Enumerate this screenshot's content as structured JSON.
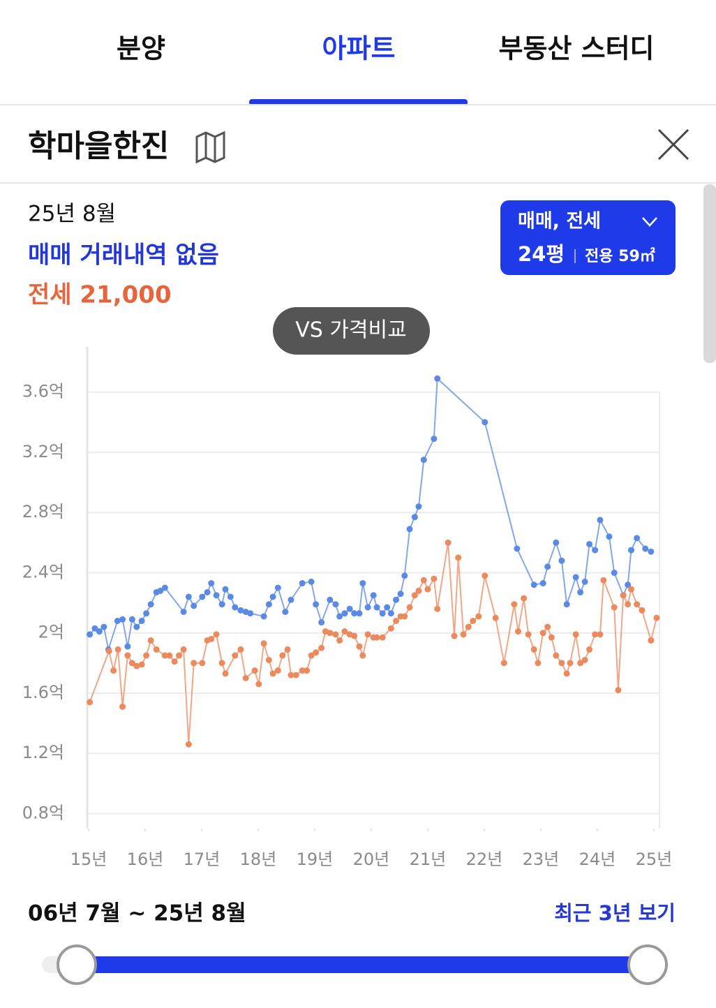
{
  "tabs": [
    "분양",
    "아파트",
    "부동산 스터디"
  ],
  "active_tab": 1,
  "header": {
    "title": "학마을한진"
  },
  "summary": {
    "date": "25년 8월",
    "sale": "매매 거래내역 없음",
    "jeonse": "전세 21,000"
  },
  "filter": {
    "type": "매매, 전세",
    "size": "24평",
    "area": "전용 59㎡"
  },
  "compare_button": "VS 가격비교",
  "chart_data": {
    "type": "line",
    "xlim": [
      15,
      25.1
    ],
    "ylim": [
      0.7,
      3.9
    ],
    "xticks": [
      {
        "value": 15,
        "label": "15년"
      },
      {
        "value": 16,
        "label": "16년"
      },
      {
        "value": 17,
        "label": "17년"
      },
      {
        "value": 18,
        "label": "18년"
      },
      {
        "value": 19,
        "label": "19년"
      },
      {
        "value": 20,
        "label": "20년"
      },
      {
        "value": 21,
        "label": "21년"
      },
      {
        "value": 22,
        "label": "22년"
      },
      {
        "value": 23,
        "label": "23년"
      },
      {
        "value": 24,
        "label": "24년"
      },
      {
        "value": 25,
        "label": "25년"
      }
    ],
    "yticks": [
      {
        "value": 0.8,
        "label": "0.8억"
      },
      {
        "value": 1.2,
        "label": "1.2억"
      },
      {
        "value": 1.6,
        "label": "1.6억"
      },
      {
        "value": 2,
        "label": "2억"
      },
      {
        "value": 2.4,
        "label": "2.4억"
      },
      {
        "value": 2.8,
        "label": "2.8억"
      },
      {
        "value": 3.2,
        "label": "3.2억"
      },
      {
        "value": 3.6,
        "label": "3.6억"
      }
    ],
    "grid": true,
    "series": [
      {
        "color": "#5a8ae6",
        "x": [
          15.02,
          15.11,
          15.19,
          15.27,
          15.35,
          15.51,
          15.6,
          15.69,
          15.77,
          15.85,
          15.94,
          16.02,
          16.1,
          16.2,
          16.27,
          16.35,
          16.68,
          16.77,
          16.86,
          17.01,
          17.1,
          17.17,
          17.26,
          17.36,
          17.42,
          17.51,
          17.59,
          17.69,
          17.78,
          17.86,
          18.1,
          18.19,
          18.26,
          18.35,
          18.48,
          18.58,
          18.78,
          18.94,
          19.02,
          19.12,
          19.27,
          19.37,
          19.44,
          19.53,
          19.62,
          19.7,
          19.79,
          19.85,
          19.94,
          20.04,
          20.1,
          20.2,
          20.28,
          20.35,
          20.44,
          20.52,
          20.59,
          20.68,
          20.77,
          20.84,
          20.93,
          21.11,
          21.17,
          22.01,
          22.58,
          22.88,
          23.04,
          23.12,
          23.27,
          23.37,
          23.46,
          23.62,
          23.7,
          23.78,
          23.86,
          23.96,
          24.05,
          24.21,
          24.3,
          24.46,
          24.54,
          24.6,
          24.7,
          24.85,
          24.95
        ],
        "values": [
          1.99,
          2.03,
          2.01,
          2.04,
          1.89,
          2.08,
          2.09,
          1.91,
          2.09,
          2.04,
          2.08,
          2.13,
          2.19,
          2.27,
          2.28,
          2.3,
          2.14,
          2.24,
          2.18,
          2.24,
          2.27,
          2.33,
          2.25,
          2.19,
          2.29,
          2.24,
          2.17,
          2.15,
          2.14,
          2.13,
          2.11,
          2.19,
          2.24,
          2.3,
          2.14,
          2.22,
          2.33,
          2.34,
          2.19,
          2.07,
          2.22,
          2.19,
          2.11,
          2.13,
          2.16,
          2.13,
          2.13,
          2.33,
          2.17,
          2.25,
          2.17,
          2.13,
          2.17,
          2.13,
          2.22,
          2.26,
          2.38,
          2.69,
          2.77,
          2.84,
          3.15,
          3.29,
          3.69,
          3.4,
          2.56,
          2.32,
          2.33,
          2.44,
          2.6,
          2.48,
          2.19,
          2.37,
          2.27,
          2.34,
          2.59,
          2.55,
          2.75,
          2.64,
          2.4,
          2.25,
          2.32,
          2.55,
          2.63,
          2.56,
          2.54
        ]
      },
      {
        "color": "#ec8a5e",
        "x": [
          15.02,
          15.36,
          15.44,
          15.52,
          15.6,
          15.69,
          15.77,
          15.85,
          15.94,
          16.02,
          16.1,
          16.2,
          16.35,
          16.43,
          16.52,
          16.6,
          16.68,
          16.77,
          16.86,
          17.01,
          17.1,
          17.17,
          17.26,
          17.36,
          17.42,
          17.59,
          17.69,
          17.78,
          17.94,
          18.01,
          18.1,
          18.19,
          18.26,
          18.35,
          18.43,
          18.52,
          18.58,
          18.67,
          18.78,
          18.86,
          18.94,
          19.02,
          19.12,
          19.19,
          19.27,
          19.37,
          19.44,
          19.53,
          19.62,
          19.7,
          19.79,
          19.85,
          19.94,
          20.04,
          20.1,
          20.2,
          20.35,
          20.44,
          20.52,
          20.59,
          20.68,
          20.77,
          20.84,
          20.93,
          21.0,
          21.11,
          21.17,
          21.36,
          21.47,
          21.54,
          21.63,
          21.72,
          21.8,
          21.9,
          22.01,
          22.2,
          22.35,
          22.53,
          22.6,
          22.7,
          22.78,
          22.88,
          22.95,
          23.04,
          23.12,
          23.19,
          23.27,
          23.37,
          23.46,
          23.52,
          23.62,
          23.7,
          23.78,
          23.86,
          23.96,
          24.05,
          24.11,
          24.3,
          24.37,
          24.46,
          24.54,
          24.6,
          24.7,
          24.79,
          24.95,
          25.05
        ],
        "values": [
          1.54,
          1.88,
          1.75,
          1.89,
          1.51,
          1.85,
          1.8,
          1.78,
          1.79,
          1.85,
          1.95,
          1.89,
          1.85,
          1.85,
          1.81,
          1.85,
          1.89,
          1.26,
          1.8,
          1.8,
          1.95,
          1.96,
          1.99,
          1.8,
          1.73,
          1.85,
          1.89,
          1.7,
          1.75,
          1.66,
          1.93,
          1.82,
          1.73,
          1.75,
          1.85,
          1.89,
          1.72,
          1.72,
          1.75,
          1.75,
          1.85,
          1.87,
          1.9,
          2.01,
          2.0,
          1.99,
          1.95,
          2.01,
          1.99,
          1.98,
          1.91,
          1.85,
          1.99,
          1.97,
          1.97,
          1.97,
          2.03,
          2.08,
          2.11,
          2.11,
          2.17,
          2.25,
          2.28,
          2.35,
          2.29,
          2.36,
          2.16,
          2.6,
          1.98,
          2.5,
          1.99,
          2.04,
          2.08,
          2.11,
          2.38,
          2.1,
          1.8,
          2.19,
          2.01,
          2.23,
          1.99,
          1.89,
          1.8,
          2.0,
          2.04,
          1.97,
          1.85,
          1.8,
          1.73,
          1.8,
          1.99,
          1.8,
          1.82,
          1.89,
          1.99,
          1.99,
          2.35,
          2.17,
          1.62,
          2.25,
          2.19,
          2.29,
          2.19,
          2.15,
          1.95,
          2.1
        ]
      }
    ]
  },
  "range": {
    "label": "06년 7월 ~ 25년 8월",
    "recent_button": "최근 3년 보기"
  }
}
